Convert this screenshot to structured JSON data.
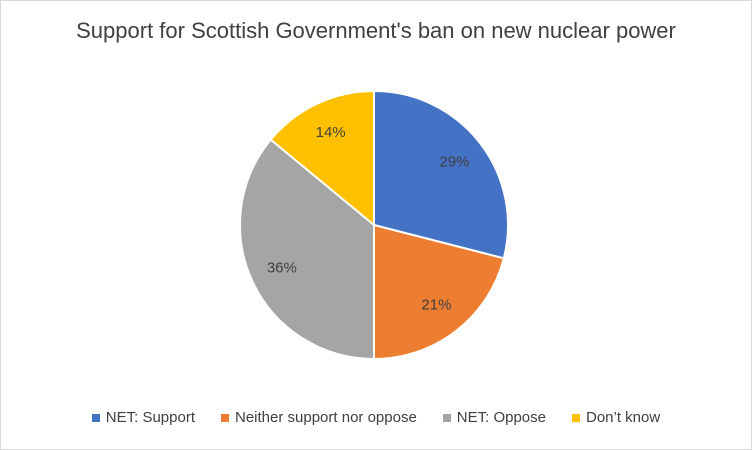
{
  "chart_data": {
    "type": "pie",
    "title": "Support for Scottish Government's ban on new nuclear power",
    "categories": [
      "NET: Support",
      "Neither support nor oppose",
      "NET: Oppose",
      "Don’t know"
    ],
    "values": [
      29,
      21,
      36,
      14
    ],
    "value_labels": [
      "29%",
      "21%",
      "36%",
      "14%"
    ],
    "colors": [
      "#4472c4",
      "#ed7d31",
      "#a5a5a5",
      "#ffc000"
    ],
    "legend": "bottom"
  }
}
